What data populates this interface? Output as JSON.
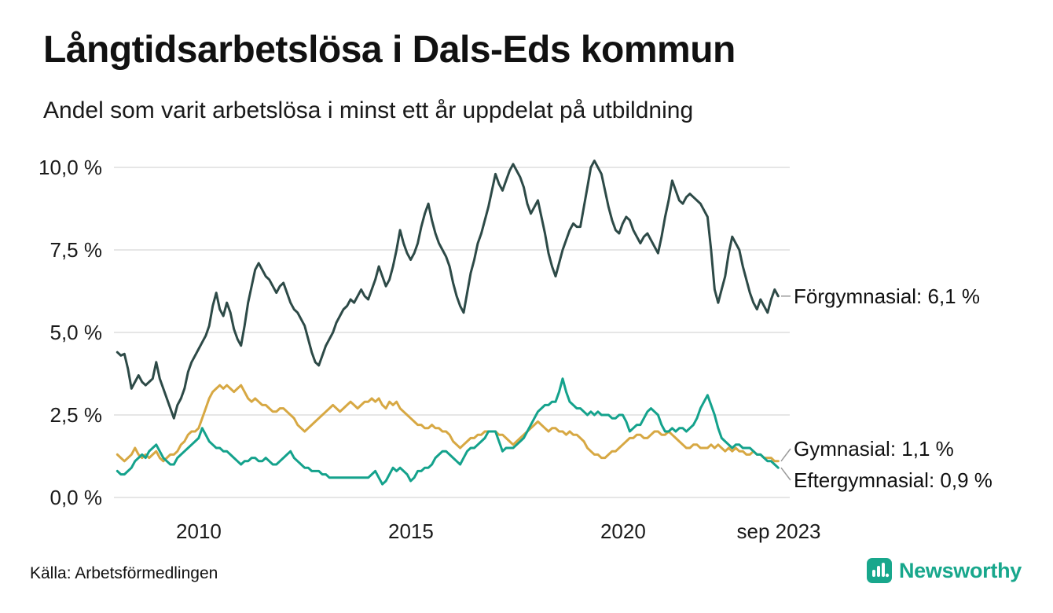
{
  "header": {
    "title": "Långtidsarbetslösa i Dals-Eds kommun",
    "subtitle": "Andel som varit arbetslösa i minst ett år uppdelat på utbildning"
  },
  "footer": {
    "source": "Källa: Arbetsförmedlingen",
    "brand": "Newsworthy",
    "brand_color": "#18a78c"
  },
  "chart_data": {
    "type": "line",
    "title": "Långtidsarbetslösa i Dals-Eds kommun",
    "subtitle": "Andel som varit arbetslösa i minst ett år uppdelat på utbildning",
    "grid": true,
    "legend_position": "right-annotations",
    "x_axis": {
      "range": [
        2008.0,
        2023.67
      ],
      "ticks": [
        {
          "value": 2010,
          "label": "2010"
        },
        {
          "value": 2015,
          "label": "2015"
        },
        {
          "value": 2020,
          "label": "2020"
        },
        {
          "value": 2023.67,
          "label": "sep 2023"
        }
      ]
    },
    "y_axis": {
      "range": [
        0,
        10
      ],
      "ticks": [
        {
          "value": 0,
          "label": "0,0 %"
        },
        {
          "value": 2.5,
          "label": "2,5 %"
        },
        {
          "value": 5,
          "label": "5,0 %"
        },
        {
          "value": 7.5,
          "label": "7,5 %"
        },
        {
          "value": 10,
          "label": "10,0 %"
        }
      ]
    },
    "series": [
      {
        "name": "Förgymnasial",
        "label": "Förgymnasial: 6,1 %",
        "end_value": 6.1,
        "color": "#2d4a47",
        "x_start": 2008.08,
        "x_step": 0.0833,
        "values": [
          4.4,
          4.3,
          4.35,
          3.9,
          3.3,
          3.5,
          3.7,
          3.5,
          3.4,
          3.5,
          3.6,
          4.1,
          3.6,
          3.3,
          3.0,
          2.7,
          2.4,
          2.8,
          3.0,
          3.3,
          3.8,
          4.1,
          4.3,
          4.5,
          4.7,
          4.9,
          5.2,
          5.8,
          6.2,
          5.7,
          5.5,
          5.9,
          5.6,
          5.1,
          4.8,
          4.6,
          5.2,
          5.9,
          6.4,
          6.9,
          7.1,
          6.9,
          6.7,
          6.6,
          6.4,
          6.2,
          6.4,
          6.5,
          6.2,
          5.9,
          5.7,
          5.6,
          5.4,
          5.2,
          4.8,
          4.4,
          4.1,
          4.0,
          4.3,
          4.6,
          4.8,
          5.0,
          5.3,
          5.5,
          5.7,
          5.8,
          6.0,
          5.9,
          6.1,
          6.3,
          6.1,
          6.0,
          6.3,
          6.6,
          7.0,
          6.7,
          6.4,
          6.6,
          7.0,
          7.5,
          8.1,
          7.7,
          7.4,
          7.2,
          7.4,
          7.7,
          8.2,
          8.6,
          8.9,
          8.4,
          8.0,
          7.7,
          7.5,
          7.3,
          7.0,
          6.5,
          6.1,
          5.8,
          5.6,
          6.2,
          6.8,
          7.2,
          7.7,
          8.0,
          8.4,
          8.8,
          9.3,
          9.8,
          9.5,
          9.3,
          9.6,
          9.9,
          10.1,
          9.9,
          9.7,
          9.4,
          8.9,
          8.6,
          8.8,
          9.0,
          8.5,
          8.0,
          7.4,
          7.0,
          6.7,
          7.1,
          7.5,
          7.8,
          8.1,
          8.3,
          8.2,
          8.2,
          8.8,
          9.4,
          10.0,
          10.2,
          10.0,
          9.8,
          9.3,
          8.8,
          8.4,
          8.1,
          8.0,
          8.3,
          8.5,
          8.4,
          8.1,
          7.9,
          7.7,
          7.9,
          8.0,
          7.8,
          7.6,
          7.4,
          7.9,
          8.5,
          9.0,
          9.6,
          9.3,
          9.0,
          8.9,
          9.1,
          9.2,
          9.1,
          9.0,
          8.9,
          8.7,
          8.5,
          7.5,
          6.3,
          5.9,
          6.3,
          6.7,
          7.4,
          7.9,
          7.7,
          7.5,
          7.0,
          6.6,
          6.2,
          5.9,
          5.7,
          6.0,
          5.8,
          5.6,
          6.0,
          6.3,
          6.1
        ]
      },
      {
        "name": "Gymnasial",
        "label": "Gymnasial: 1,1 %",
        "end_value": 1.1,
        "color": "#d7a843",
        "x_start": 2008.08,
        "x_step": 0.0833,
        "values": [
          1.3,
          1.2,
          1.1,
          1.2,
          1.3,
          1.5,
          1.3,
          1.2,
          1.3,
          1.2,
          1.3,
          1.4,
          1.2,
          1.1,
          1.2,
          1.3,
          1.3,
          1.4,
          1.6,
          1.7,
          1.9,
          2.0,
          2.0,
          2.1,
          2.4,
          2.7,
          3.0,
          3.2,
          3.3,
          3.4,
          3.3,
          3.4,
          3.3,
          3.2,
          3.3,
          3.4,
          3.2,
          3.0,
          2.9,
          3.0,
          2.9,
          2.8,
          2.8,
          2.7,
          2.6,
          2.6,
          2.7,
          2.7,
          2.6,
          2.5,
          2.4,
          2.2,
          2.1,
          2.0,
          2.1,
          2.2,
          2.3,
          2.4,
          2.5,
          2.6,
          2.7,
          2.8,
          2.7,
          2.6,
          2.7,
          2.8,
          2.9,
          2.8,
          2.7,
          2.8,
          2.9,
          2.9,
          3.0,
          2.9,
          3.0,
          2.8,
          2.7,
          2.9,
          2.8,
          2.9,
          2.7,
          2.6,
          2.5,
          2.4,
          2.3,
          2.2,
          2.2,
          2.1,
          2.1,
          2.2,
          2.1,
          2.1,
          2.0,
          2.0,
          1.9,
          1.7,
          1.6,
          1.5,
          1.6,
          1.7,
          1.8,
          1.8,
          1.9,
          1.9,
          2.0,
          2.0,
          2.0,
          2.0,
          1.9,
          1.9,
          1.8,
          1.7,
          1.6,
          1.7,
          1.8,
          1.9,
          2.0,
          2.1,
          2.2,
          2.3,
          2.2,
          2.1,
          2.0,
          2.1,
          2.1,
          2.0,
          2.0,
          1.9,
          2.0,
          1.9,
          1.9,
          1.8,
          1.7,
          1.5,
          1.4,
          1.3,
          1.3,
          1.2,
          1.2,
          1.3,
          1.4,
          1.4,
          1.5,
          1.6,
          1.7,
          1.8,
          1.8,
          1.9,
          1.9,
          1.8,
          1.8,
          1.9,
          2.0,
          2.0,
          1.9,
          1.9,
          2.0,
          1.9,
          1.8,
          1.7,
          1.6,
          1.5,
          1.5,
          1.6,
          1.6,
          1.5,
          1.5,
          1.5,
          1.6,
          1.5,
          1.6,
          1.5,
          1.4,
          1.5,
          1.4,
          1.5,
          1.4,
          1.4,
          1.3,
          1.3,
          1.4,
          1.3,
          1.3,
          1.2,
          1.2,
          1.2,
          1.1,
          1.1
        ]
      },
      {
        "name": "Eftergymnasial",
        "label": "Eftergymnasial: 0,9 %",
        "end_value": 0.9,
        "color": "#14a28c",
        "x_start": 2008.08,
        "x_step": 0.0833,
        "values": [
          0.8,
          0.7,
          0.7,
          0.8,
          0.9,
          1.1,
          1.2,
          1.3,
          1.2,
          1.4,
          1.5,
          1.6,
          1.4,
          1.2,
          1.1,
          1.0,
          1.0,
          1.2,
          1.3,
          1.4,
          1.5,
          1.6,
          1.7,
          1.8,
          2.1,
          1.9,
          1.7,
          1.6,
          1.5,
          1.5,
          1.4,
          1.4,
          1.3,
          1.2,
          1.1,
          1.0,
          1.1,
          1.1,
          1.2,
          1.2,
          1.1,
          1.1,
          1.2,
          1.1,
          1.0,
          1.0,
          1.1,
          1.2,
          1.3,
          1.4,
          1.2,
          1.1,
          1.0,
          0.9,
          0.9,
          0.8,
          0.8,
          0.8,
          0.7,
          0.7,
          0.6,
          0.6,
          0.6,
          0.6,
          0.6,
          0.6,
          0.6,
          0.6,
          0.6,
          0.6,
          0.6,
          0.6,
          0.7,
          0.8,
          0.6,
          0.4,
          0.5,
          0.7,
          0.9,
          0.8,
          0.9,
          0.8,
          0.7,
          0.5,
          0.6,
          0.8,
          0.8,
          0.9,
          0.9,
          1.0,
          1.2,
          1.3,
          1.4,
          1.4,
          1.3,
          1.2,
          1.1,
          1.0,
          1.2,
          1.4,
          1.5,
          1.5,
          1.6,
          1.7,
          1.8,
          2.0,
          2.0,
          2.0,
          1.7,
          1.4,
          1.5,
          1.5,
          1.5,
          1.6,
          1.7,
          1.8,
          2.0,
          2.2,
          2.4,
          2.6,
          2.7,
          2.8,
          2.8,
          2.9,
          2.9,
          3.2,
          3.6,
          3.2,
          2.9,
          2.8,
          2.7,
          2.7,
          2.6,
          2.5,
          2.6,
          2.5,
          2.6,
          2.5,
          2.5,
          2.5,
          2.4,
          2.4,
          2.5,
          2.5,
          2.3,
          2.0,
          2.1,
          2.2,
          2.2,
          2.4,
          2.6,
          2.7,
          2.6,
          2.5,
          2.2,
          2.0,
          2.0,
          2.1,
          2.0,
          2.1,
          2.1,
          2.0,
          2.1,
          2.2,
          2.4,
          2.7,
          2.9,
          3.1,
          2.8,
          2.5,
          2.1,
          1.8,
          1.7,
          1.6,
          1.5,
          1.6,
          1.6,
          1.5,
          1.5,
          1.5,
          1.4,
          1.3,
          1.3,
          1.2,
          1.1,
          1.1,
          1.0,
          0.9
        ]
      }
    ],
    "style": {
      "gridline_color": "#dedede",
      "axis_label_color": "#1a1a1a",
      "annotation_color": "#111111",
      "connector_color": "#999999"
    }
  }
}
